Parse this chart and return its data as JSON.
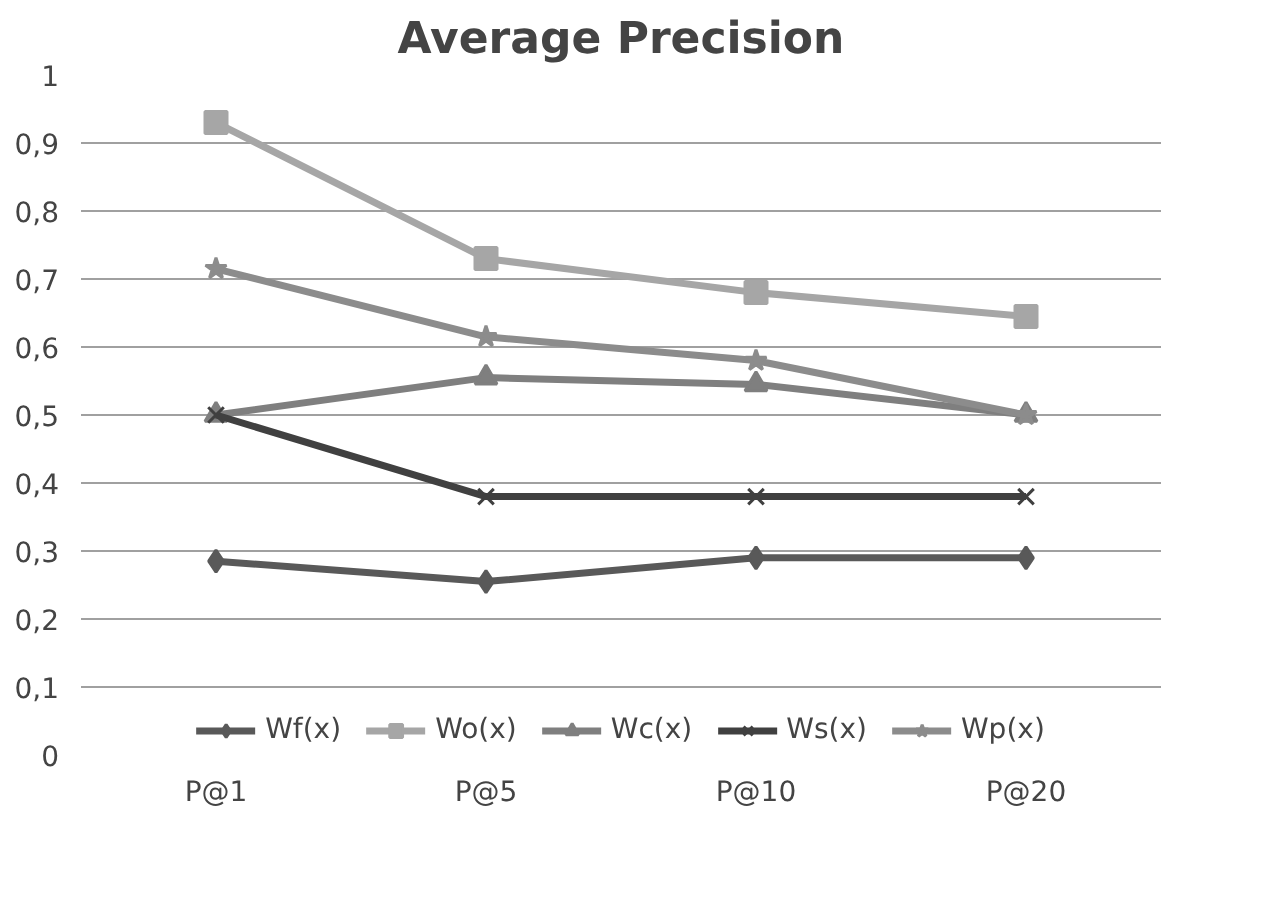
{
  "chart_data": {
    "type": "line",
    "title": "Average Precision",
    "categories": [
      "P@1",
      "P@5",
      "P@10",
      "P@20"
    ],
    "series": [
      {
        "name": "Wf(x)",
        "color": "#595959",
        "marker": "diamond",
        "values": [
          0.285,
          0.255,
          0.29,
          0.29
        ]
      },
      {
        "name": "Wo(x)",
        "color": "#a6a6a6",
        "marker": "square",
        "values": [
          0.93,
          0.73,
          0.68,
          0.645
        ]
      },
      {
        "name": "Wc(x)",
        "color": "#7f7f7f",
        "marker": "triangle",
        "values": [
          0.5,
          0.555,
          0.545,
          0.5
        ]
      },
      {
        "name": "Ws(x)",
        "color": "#404040",
        "marker": "cross",
        "values": [
          0.5,
          0.38,
          0.38,
          0.38
        ]
      },
      {
        "name": "Wp(x)",
        "color": "#8c8c8c",
        "marker": "star",
        "values": [
          0.715,
          0.615,
          0.58,
          0.5
        ]
      }
    ],
    "ylim": [
      0,
      1
    ],
    "yticks": [
      0,
      {
        "value": 0.1,
        "label": "0,1"
      },
      {
        "value": 0.2,
        "label": "0,2"
      },
      {
        "value": 0.3,
        "label": "0,3"
      },
      {
        "value": 0.4,
        "label": "0,4"
      },
      {
        "value": 0.5,
        "label": "0,5"
      },
      {
        "value": 0.6,
        "label": "0,6"
      },
      {
        "value": 0.7,
        "label": "0,7"
      },
      {
        "value": 0.8,
        "label": "0,8"
      },
      {
        "value": 0.9,
        "label": "0,9"
      },
      1
    ],
    "grid": "y",
    "legend": "bottom",
    "line_style": "solid"
  }
}
